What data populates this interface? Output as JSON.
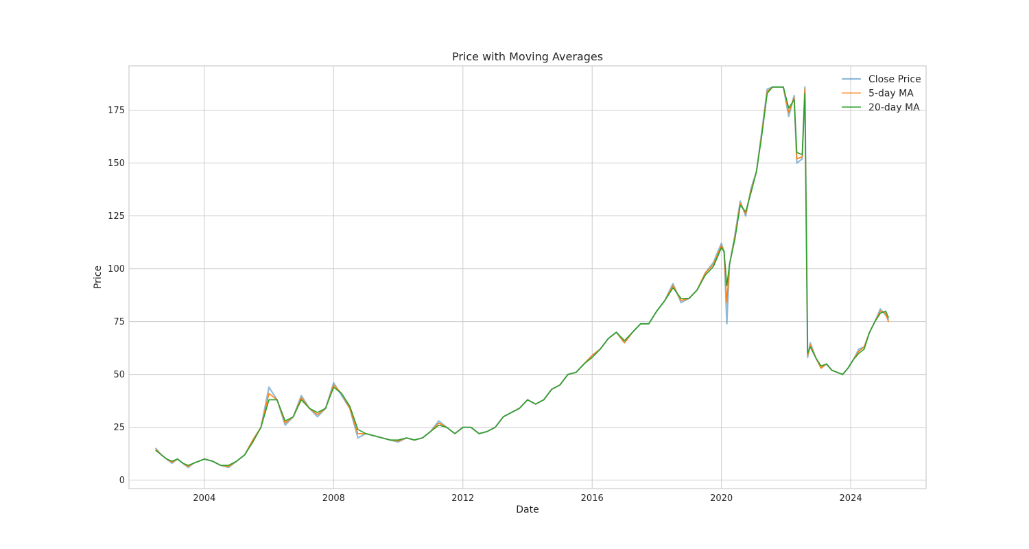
{
  "chart_data": {
    "type": "line",
    "title": "Price with Moving Averages",
    "xlabel": "Date",
    "ylabel": "Price",
    "xlim": [
      "2001-09-01",
      "2026-05-01"
    ],
    "ylim": [
      -4,
      196
    ],
    "x_ticks": [
      "2004",
      "2008",
      "2012",
      "2016",
      "2020",
      "2024"
    ],
    "y_ticks": [
      0,
      25,
      50,
      75,
      100,
      125,
      150,
      175
    ],
    "grid": true,
    "legend_position": "top-right",
    "x": [
      "2002-07",
      "2002-09",
      "2002-11",
      "2003-01",
      "2003-03",
      "2003-05",
      "2003-07",
      "2003-09",
      "2003-11",
      "2004-01",
      "2004-04",
      "2004-07",
      "2004-10",
      "2005-01",
      "2005-04",
      "2005-07",
      "2005-10",
      "2006-01",
      "2006-04",
      "2006-07",
      "2006-10",
      "2007-01",
      "2007-04",
      "2007-07",
      "2007-10",
      "2008-01",
      "2008-04",
      "2008-07",
      "2008-10",
      "2009-01",
      "2009-04",
      "2009-07",
      "2009-10",
      "2010-01",
      "2010-04",
      "2010-07",
      "2010-10",
      "2011-01",
      "2011-04",
      "2011-07",
      "2011-10",
      "2012-01",
      "2012-04",
      "2012-07",
      "2012-10",
      "2013-01",
      "2013-04",
      "2013-07",
      "2013-10",
      "2014-01",
      "2014-04",
      "2014-07",
      "2014-10",
      "2015-01",
      "2015-04",
      "2015-07",
      "2015-10",
      "2016-01",
      "2016-04",
      "2016-07",
      "2016-10",
      "2017-01",
      "2017-04",
      "2017-07",
      "2017-10",
      "2018-01",
      "2018-04",
      "2018-07",
      "2018-10",
      "2019-01",
      "2019-04",
      "2019-07",
      "2019-10",
      "2020-01",
      "2020-02",
      "2020-03",
      "2020-04",
      "2020-06",
      "2020-08",
      "2020-10",
      "2020-12",
      "2021-02",
      "2021-04",
      "2021-06",
      "2021-08",
      "2021-10",
      "2021-12",
      "2022-02",
      "2022-04",
      "2022-05",
      "2022-07",
      "2022-08",
      "2022-09",
      "2022-10",
      "2022-12",
      "2023-02",
      "2023-04",
      "2023-06",
      "2023-08",
      "2023-10",
      "2023-12",
      "2024-02",
      "2024-04",
      "2024-06",
      "2024-08",
      "2024-10",
      "2024-12",
      "2025-02",
      "2025-03"
    ],
    "series": [
      {
        "name": "Close Price",
        "color": "#1f77b4",
        "values": [
          15,
          12,
          10,
          8,
          10,
          8,
          6,
          8,
          9,
          10,
          9,
          7,
          6,
          9,
          12,
          19,
          25,
          44,
          38,
          26,
          30,
          40,
          34,
          30,
          34,
          46,
          40,
          34,
          20,
          22,
          21,
          20,
          19,
          18,
          20,
          19,
          20,
          23,
          28,
          25,
          22,
          25,
          25,
          22,
          23,
          25,
          30,
          32,
          34,
          38,
          36,
          38,
          43,
          45,
          50,
          51,
          55,
          59,
          62,
          67,
          70,
          65,
          70,
          74,
          74,
          80,
          85,
          93,
          84,
          86,
          90,
          98,
          103,
          112,
          108,
          74,
          102,
          116,
          132,
          125,
          138,
          146,
          165,
          185,
          186,
          186,
          186,
          172,
          182,
          150,
          152,
          186,
          58,
          65,
          58,
          53,
          55,
          52,
          51,
          50,
          53,
          57,
          62,
          63,
          70,
          75,
          81,
          78,
          76
        ]
      },
      {
        "name": "5-day MA",
        "color": "#ff7f0e",
        "values": [
          14.5,
          12,
          10,
          8.5,
          10,
          8,
          6.5,
          8,
          9,
          10,
          9,
          7,
          6.5,
          9,
          12,
          19,
          25,
          41,
          38,
          27,
          30,
          39,
          34,
          31,
          34,
          45,
          41,
          34,
          22,
          22,
          21,
          20,
          19,
          18.5,
          20,
          19,
          20,
          23,
          27,
          25,
          22,
          25,
          25,
          22,
          23,
          25,
          30,
          32,
          34,
          38,
          36,
          38,
          43,
          45,
          50,
          51,
          55,
          59,
          62,
          67,
          70,
          65,
          70,
          74,
          74,
          80,
          85,
          92,
          85,
          86,
          90,
          98,
          102,
          111,
          108,
          84,
          102,
          115,
          131,
          126,
          137,
          146,
          164,
          184,
          186,
          186,
          186,
          174,
          181,
          152,
          153,
          185,
          59,
          64,
          58,
          53,
          55,
          52,
          51,
          50,
          53,
          57,
          61,
          63,
          70,
          75,
          80,
          79,
          75
        ]
      },
      {
        "name": "20-day MA",
        "color": "#2ca02c",
        "values": [
          14,
          12,
          10,
          9,
          10,
          8,
          7,
          8,
          9,
          10,
          9,
          7,
          7,
          9,
          12,
          18,
          25,
          38,
          38,
          28,
          30,
          38,
          34,
          32,
          34,
          44,
          41,
          35,
          24,
          22,
          21,
          20,
          19,
          19,
          20,
          19,
          20,
          23,
          26,
          25,
          22,
          25,
          25,
          22,
          23,
          25,
          30,
          32,
          34,
          38,
          36,
          38,
          43,
          45,
          50,
          51,
          55,
          58,
          62,
          67,
          70,
          66,
          70,
          74,
          74,
          80,
          85,
          91,
          86,
          86,
          90,
          97,
          101,
          110,
          108,
          92,
          102,
          114,
          130,
          127,
          136,
          146,
          163,
          183,
          186,
          186,
          186,
          176,
          180,
          155,
          154,
          183,
          60,
          63,
          58,
          54,
          55,
          52,
          51,
          50,
          53,
          57,
          60,
          62,
          70,
          75,
          79,
          80,
          77
        ]
      }
    ]
  }
}
